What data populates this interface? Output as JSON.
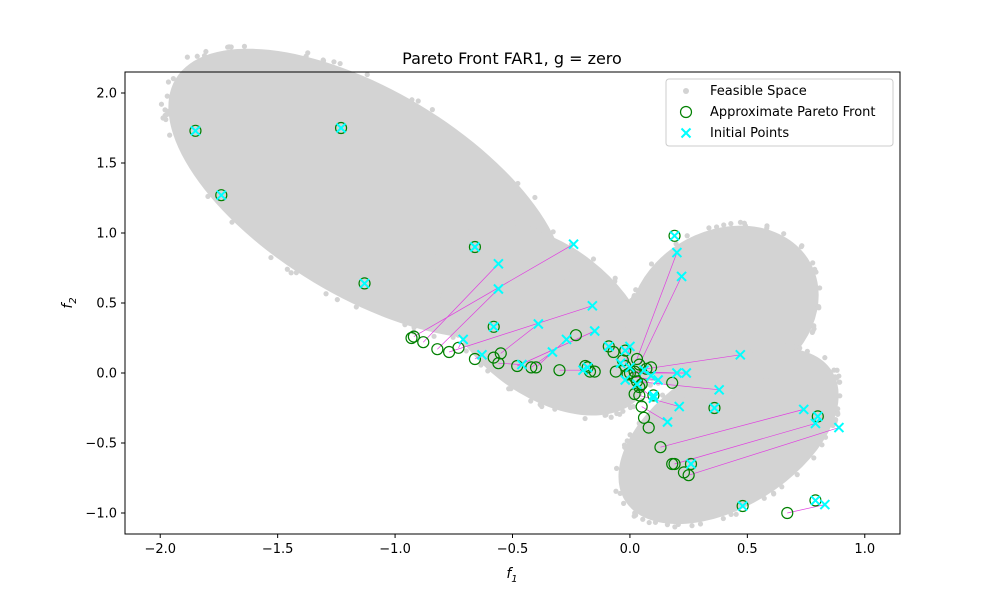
{
  "chart_data": {
    "type": "scatter",
    "title": "Pareto Front FAR1, g = zero",
    "xlabel": "f",
    "xlabel_sub": "1",
    "ylabel": "f",
    "ylabel_sub": "2",
    "xlim": [
      -2.15,
      1.15
    ],
    "ylim": [
      -1.15,
      2.15
    ],
    "xticks": [
      -2.0,
      -1.5,
      -1.0,
      -0.5,
      0.0,
      0.5,
      1.0
    ],
    "xtick_labels": [
      "−2.0",
      "−1.5",
      "−1.0",
      "−0.5",
      "0.0",
      "0.5",
      "1.0"
    ],
    "yticks": [
      -1.0,
      -0.5,
      0.0,
      0.5,
      1.0,
      1.5,
      2.0
    ],
    "ytick_labels": [
      "−1.0",
      "−0.5",
      "0.0",
      "0.5",
      "1.0",
      "1.5",
      "2.0"
    ],
    "grid": false,
    "legend_position": "top-right",
    "colors": {
      "feasible": "#d3d3d3",
      "pareto_edge": "#008000",
      "initial": "#00ffff",
      "path": "#e040e0"
    },
    "legend": [
      {
        "label": "Feasible Space",
        "marker": "dot"
      },
      {
        "label": "Approximate Pareto Front",
        "marker": "circle"
      },
      {
        "label": "Initial Points",
        "marker": "x"
      }
    ],
    "pairs": [
      {
        "ix": -0.24,
        "iy": 0.92,
        "px": -0.92,
        "py": 0.26
      },
      {
        "ix": -0.56,
        "iy": 0.78,
        "px": -0.88,
        "py": 0.22
      },
      {
        "ix": -0.56,
        "iy": 0.6,
        "px": -0.82,
        "py": 0.17
      },
      {
        "ix": -0.16,
        "iy": 0.48,
        "px": -0.77,
        "py": 0.15
      },
      {
        "ix": -0.39,
        "iy": 0.35,
        "px": -0.55,
        "py": 0.14
      },
      {
        "ix": -0.71,
        "iy": 0.24,
        "px": -0.73,
        "py": 0.18
      },
      {
        "ix": -0.15,
        "iy": 0.3,
        "px": -0.48,
        "py": 0.05
      },
      {
        "ix": -0.33,
        "iy": 0.15,
        "px": -0.42,
        "py": 0.04
      },
      {
        "ix": -0.27,
        "iy": 0.24,
        "px": -0.4,
        "py": 0.04
      },
      {
        "ix": -0.63,
        "iy": 0.13,
        "px": -0.66,
        "py": 0.1
      },
      {
        "ix": -0.46,
        "iy": 0.06,
        "px": -0.56,
        "py": 0.07
      },
      {
        "ix": 0.2,
        "iy": 0.86,
        "px": 0.03,
        "py": 0.1
      },
      {
        "ix": 0.22,
        "iy": 0.69,
        "px": 0.04,
        "py": 0.06
      },
      {
        "ix": 0.47,
        "iy": 0.13,
        "px": 0.07,
        "py": 0.03
      },
      {
        "ix": 0.38,
        "iy": -0.12,
        "px": 0.03,
        "py": -0.06
      },
      {
        "ix": 0.21,
        "iy": -0.24,
        "px": 0.04,
        "py": -0.16
      },
      {
        "ix": 0.16,
        "iy": -0.35,
        "px": 0.05,
        "py": -0.24
      },
      {
        "ix": 0.74,
        "iy": -0.26,
        "px": 0.13,
        "py": -0.53
      },
      {
        "ix": 0.79,
        "iy": -0.36,
        "px": 0.19,
        "py": -0.65
      },
      {
        "ix": 0.89,
        "iy": -0.39,
        "px": 0.25,
        "py": -0.73
      },
      {
        "ix": 0.83,
        "iy": -0.94,
        "px": 0.67,
        "py": -1.0
      },
      {
        "ix": 0.2,
        "iy": 0.0,
        "px": 0.02,
        "py": 0.01
      },
      {
        "ix": 0.24,
        "iy": 0.0,
        "px": 0.0,
        "py": 0.0
      },
      {
        "ix": 0.0,
        "iy": 0.19,
        "px": -0.02,
        "py": 0.05
      },
      {
        "ix": 0.12,
        "iy": -0.05,
        "px": 0.02,
        "py": -0.03
      },
      {
        "ix": 0.1,
        "iy": -0.18,
        "px": 0.04,
        "py": -0.1
      },
      {
        "ix": -0.2,
        "iy": 0.02,
        "px": -0.3,
        "py": 0.02
      }
    ],
    "pareto_matched": [
      {
        "x": -1.85,
        "y": 1.73
      },
      {
        "x": -1.74,
        "y": 1.27
      },
      {
        "x": -1.23,
        "y": 1.75
      },
      {
        "x": -1.13,
        "y": 0.64
      },
      {
        "x": -0.66,
        "y": 0.9
      },
      {
        "x": -0.58,
        "y": 0.33
      },
      {
        "x": 0.19,
        "y": 0.98
      },
      {
        "x": 0.36,
        "y": -0.25
      },
      {
        "x": 0.8,
        "y": -0.31
      },
      {
        "x": 0.79,
        "y": -0.91
      },
      {
        "x": 0.48,
        "y": -0.95
      },
      {
        "x": 0.26,
        "y": -0.65
      },
      {
        "x": 0.1,
        "y": -0.16
      },
      {
        "x": -0.18,
        "y": 0.04
      },
      {
        "x": -0.09,
        "y": 0.19
      },
      {
        "x": -0.02,
        "y": 0.16
      }
    ],
    "pareto_only": [
      {
        "x": -0.93,
        "y": 0.25
      },
      {
        "x": -0.58,
        "y": 0.11
      },
      {
        "x": -0.23,
        "y": 0.27
      },
      {
        "x": -0.19,
        "y": 0.05
      },
      {
        "x": -0.17,
        "y": 0.01
      },
      {
        "x": -0.15,
        "y": 0.01
      },
      {
        "x": -0.07,
        "y": 0.15
      },
      {
        "x": -0.06,
        "y": 0.01
      },
      {
        "x": -0.03,
        "y": 0.09
      },
      {
        "x": 0.02,
        "y": -0.15
      },
      {
        "x": 0.06,
        "y": -0.32
      },
      {
        "x": 0.08,
        "y": -0.39
      },
      {
        "x": 0.09,
        "y": 0.04
      },
      {
        "x": 0.18,
        "y": -0.65
      },
      {
        "x": 0.23,
        "y": -0.71
      },
      {
        "x": 0.18,
        "y": -0.07
      },
      {
        "x": 0.05,
        "y": -0.08
      },
      {
        "x": -0.01,
        "y": -0.01
      }
    ],
    "initial_only": [
      {
        "x": 0.0,
        "y": 0.04
      },
      {
        "x": -0.04,
        "y": 0.07
      },
      {
        "x": 0.03,
        "y": -0.08
      },
      {
        "x": 0.09,
        "y": -0.02
      },
      {
        "x": -0.02,
        "y": -0.05
      },
      {
        "x": 0.06,
        "y": 0.02
      }
    ]
  }
}
